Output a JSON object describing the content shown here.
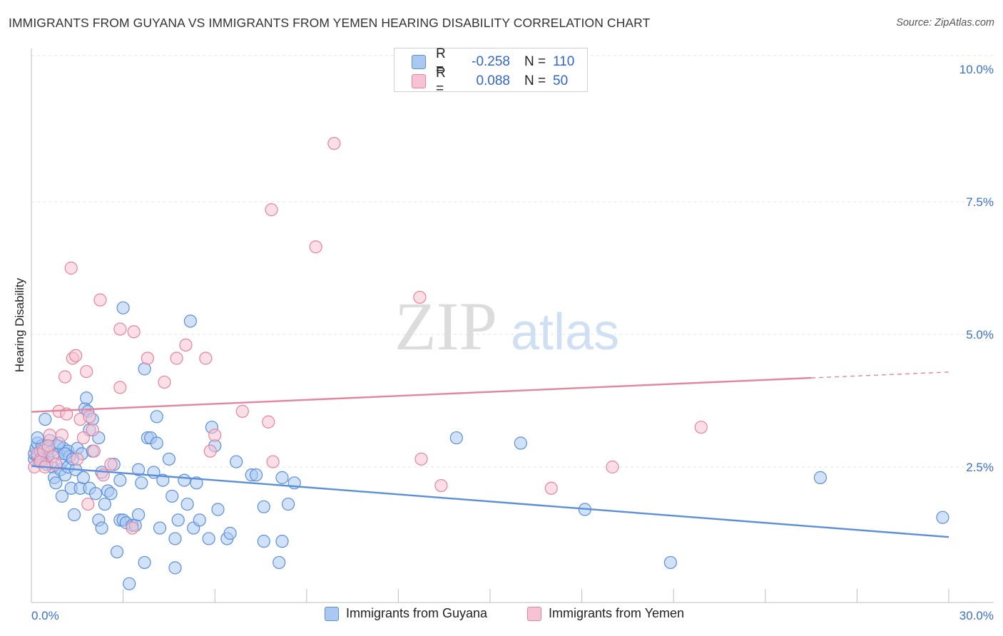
{
  "title": "IMMIGRANTS FROM GUYANA VS IMMIGRANTS FROM YEMEN HEARING DISABILITY CORRELATION CHART",
  "source": "Source: ZipAtlas.com",
  "watermark": {
    "zip": "ZIP",
    "atlas": "atlas"
  },
  "stats": {
    "r_label": "R =",
    "n_label": "N =",
    "rows": [
      {
        "r": "-0.258",
        "n": "110",
        "color": "#a9c8f2",
        "border": "#5b8fd9"
      },
      {
        "r": "0.088",
        "n": "50",
        "color": "#f7c2d2",
        "border": "#e4849f"
      }
    ]
  },
  "chart_data": {
    "type": "scatter",
    "title": "IMMIGRANTS FROM GUYANA VS IMMIGRANTS FROM YEMEN HEARING DISABILITY CORRELATION CHART",
    "xlabel": "",
    "ylabel": "Hearing Disability",
    "xlim": [
      0,
      30
    ],
    "ylim": [
      0,
      10.5
    ],
    "x_tick_labels": [
      "0.0%",
      "30.0%"
    ],
    "y_ticks": [
      2.5,
      5.0,
      7.5,
      10.0
    ],
    "y_tick_labels": [
      "2.5%",
      "5.0%",
      "7.5%",
      "10.0%"
    ],
    "grid": true,
    "legend_position": "bottom",
    "series": [
      {
        "name": "Immigrants from Guyana",
        "color": "#5b8fd9",
        "fill": "#a9c8f2",
        "trend": {
          "x0": 0,
          "y0": 2.52,
          "x1": 30,
          "y1": 1.18
        },
        "points": [
          [
            0.1,
            2.65
          ],
          [
            0.1,
            2.75
          ],
          [
            0.15,
            2.85
          ],
          [
            0.2,
            2.95
          ],
          [
            0.2,
            2.7
          ],
          [
            0.25,
            2.6
          ],
          [
            0.3,
            2.8
          ],
          [
            0.35,
            2.9
          ],
          [
            0.4,
            2.75
          ],
          [
            0.45,
            3.4
          ],
          [
            0.5,
            2.7
          ],
          [
            0.55,
            2.85
          ],
          [
            0.6,
            3.0
          ],
          [
            0.65,
            2.8
          ],
          [
            0.7,
            2.5
          ],
          [
            0.75,
            2.3
          ],
          [
            0.8,
            2.2
          ],
          [
            0.85,
            2.9
          ],
          [
            0.9,
            2.75
          ],
          [
            0.95,
            2.45
          ],
          [
            1.0,
            1.95
          ],
          [
            1.0,
            2.6
          ],
          [
            1.05,
            2.85
          ],
          [
            1.1,
            2.35
          ],
          [
            1.2,
            2.5
          ],
          [
            1.2,
            2.8
          ],
          [
            1.25,
            2.7
          ],
          [
            1.3,
            2.1
          ],
          [
            1.4,
            1.6
          ],
          [
            1.45,
            2.45
          ],
          [
            1.5,
            2.85
          ],
          [
            1.6,
            2.1
          ],
          [
            1.65,
            2.75
          ],
          [
            1.7,
            2.3
          ],
          [
            1.75,
            3.6
          ],
          [
            1.8,
            3.8
          ],
          [
            1.85,
            3.55
          ],
          [
            1.9,
            2.1
          ],
          [
            1.9,
            3.2
          ],
          [
            2.0,
            2.8
          ],
          [
            2.0,
            3.4
          ],
          [
            2.1,
            2.0
          ],
          [
            2.2,
            3.05
          ],
          [
            2.2,
            1.5
          ],
          [
            2.3,
            1.35
          ],
          [
            2.3,
            2.4
          ],
          [
            2.4,
            1.8
          ],
          [
            2.5,
            2.05
          ],
          [
            2.6,
            2.0
          ],
          [
            2.8,
            0.9
          ],
          [
            2.9,
            1.5
          ],
          [
            2.9,
            2.25
          ],
          [
            3.0,
            5.5
          ],
          [
            3.0,
            1.5
          ],
          [
            3.1,
            1.45
          ],
          [
            3.2,
            0.3
          ],
          [
            3.3,
            1.4
          ],
          [
            3.4,
            1.4
          ],
          [
            3.5,
            1.6
          ],
          [
            3.5,
            2.45
          ],
          [
            3.6,
            2.2
          ],
          [
            3.7,
            4.35
          ],
          [
            3.7,
            0.7
          ],
          [
            3.8,
            3.05
          ],
          [
            3.9,
            3.05
          ],
          [
            4.0,
            2.4
          ],
          [
            4.1,
            2.95
          ],
          [
            4.1,
            3.45
          ],
          [
            4.2,
            1.35
          ],
          [
            4.3,
            2.25
          ],
          [
            4.5,
            2.65
          ],
          [
            4.6,
            1.95
          ],
          [
            4.7,
            0.6
          ],
          [
            4.7,
            1.15
          ],
          [
            4.8,
            1.5
          ],
          [
            5.0,
            2.25
          ],
          [
            5.1,
            1.8
          ],
          [
            5.2,
            5.25
          ],
          [
            5.3,
            1.35
          ],
          [
            5.4,
            2.2
          ],
          [
            5.5,
            1.5
          ],
          [
            5.8,
            1.15
          ],
          [
            5.9,
            3.25
          ],
          [
            6.0,
            2.9
          ],
          [
            6.1,
            1.7
          ],
          [
            6.4,
            1.15
          ],
          [
            6.5,
            1.25
          ],
          [
            6.7,
            2.6
          ],
          [
            7.2,
            2.35
          ],
          [
            7.35,
            2.35
          ],
          [
            7.6,
            1.75
          ],
          [
            7.6,
            1.1
          ],
          [
            8.1,
            0.7
          ],
          [
            8.2,
            2.3
          ],
          [
            8.2,
            1.1
          ],
          [
            8.4,
            1.8
          ],
          [
            8.6,
            2.2
          ],
          [
            13.9,
            3.05
          ],
          [
            16.0,
            2.95
          ],
          [
            18.1,
            1.7
          ],
          [
            20.9,
            0.7
          ],
          [
            25.8,
            2.3
          ],
          [
            29.8,
            1.55
          ],
          [
            0.2,
            3.05
          ],
          [
            0.3,
            2.65
          ],
          [
            0.5,
            2.55
          ],
          [
            0.9,
            2.95
          ],
          [
            1.1,
            2.75
          ],
          [
            1.35,
            2.65
          ],
          [
            2.7,
            2.55
          ]
        ]
      },
      {
        "name": "Immigrants from Yemen",
        "color": "#e4849f",
        "fill": "#f7c2d2",
        "trend": {
          "x0": 0,
          "y0": 3.54,
          "x1": 25.5,
          "y1": 4.18
        },
        "trend_dashed_to": {
          "x": 30,
          "y": 4.29
        },
        "points": [
          [
            0.1,
            2.5
          ],
          [
            0.2,
            2.75
          ],
          [
            0.3,
            2.6
          ],
          [
            0.4,
            2.8
          ],
          [
            0.45,
            2.5
          ],
          [
            0.6,
            3.1
          ],
          [
            0.7,
            2.7
          ],
          [
            0.8,
            2.55
          ],
          [
            0.9,
            3.55
          ],
          [
            1.0,
            3.1
          ],
          [
            1.1,
            4.2
          ],
          [
            1.15,
            3.5
          ],
          [
            1.3,
            6.25
          ],
          [
            1.35,
            4.55
          ],
          [
            1.45,
            4.6
          ],
          [
            1.6,
            3.4
          ],
          [
            1.7,
            3.05
          ],
          [
            1.8,
            4.3
          ],
          [
            1.85,
            1.8
          ],
          [
            1.9,
            3.45
          ],
          [
            2.0,
            3.2
          ],
          [
            2.05,
            2.8
          ],
          [
            2.25,
            5.65
          ],
          [
            2.35,
            2.35
          ],
          [
            2.9,
            5.1
          ],
          [
            2.9,
            4.0
          ],
          [
            3.3,
            1.35
          ],
          [
            3.35,
            5.05
          ],
          [
            3.8,
            4.55
          ],
          [
            4.35,
            4.1
          ],
          [
            4.75,
            4.55
          ],
          [
            5.05,
            4.8
          ],
          [
            5.7,
            4.55
          ],
          [
            5.85,
            2.8
          ],
          [
            6.0,
            3.1
          ],
          [
            6.9,
            3.55
          ],
          [
            7.75,
            3.35
          ],
          [
            7.85,
            7.35
          ],
          [
            7.9,
            2.6
          ],
          [
            9.3,
            6.65
          ],
          [
            9.9,
            8.6
          ],
          [
            12.7,
            5.7
          ],
          [
            12.75,
            2.65
          ],
          [
            13.4,
            2.15
          ],
          [
            17.0,
            2.1
          ],
          [
            19.0,
            2.5
          ],
          [
            21.9,
            3.25
          ],
          [
            1.5,
            2.65
          ],
          [
            2.6,
            2.55
          ],
          [
            0.55,
            2.9
          ]
        ]
      }
    ]
  }
}
